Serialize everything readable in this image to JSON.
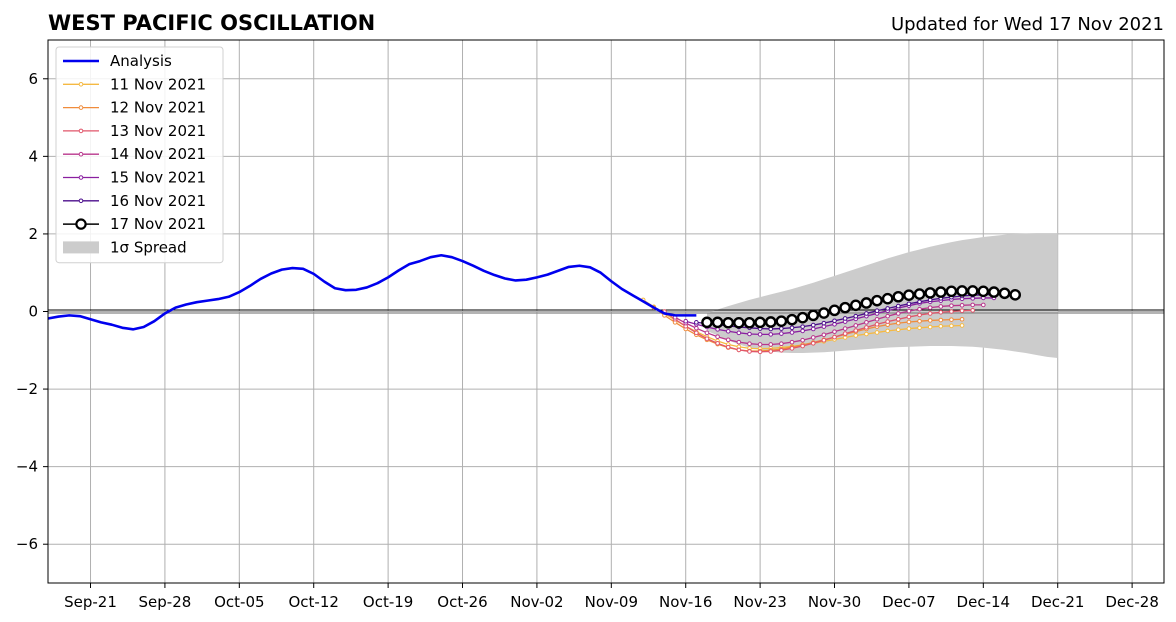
{
  "chart_data": {
    "type": "line",
    "title": "WEST PACIFIC OSCILLATION",
    "subtitle": "Updated for Wed 17 Nov 2021",
    "xlabel": "",
    "ylabel": "",
    "ylim": [
      -7,
      7
    ],
    "xlim": [
      "2021-09-17",
      "2021-12-31"
    ],
    "yticks": [
      -6,
      -4,
      -2,
      0,
      2,
      4,
      6
    ],
    "ytick_labels": [
      "−6",
      "−4",
      "−2",
      "0",
      "2",
      "4",
      "6"
    ],
    "xticks": [
      "2021-09-21",
      "2021-09-28",
      "2021-10-05",
      "2021-10-12",
      "2021-10-19",
      "2021-10-26",
      "2021-11-02",
      "2021-11-09",
      "2021-11-16",
      "2021-11-23",
      "2021-11-30",
      "2021-12-07",
      "2021-12-14",
      "2021-12-21",
      "2021-12-28"
    ],
    "xtick_labels": [
      "Sep-21",
      "Sep-28",
      "Oct-05",
      "Oct-12",
      "Oct-19",
      "Oct-26",
      "Nov-02",
      "Nov-09",
      "Nov-16",
      "Nov-23",
      "Nov-30",
      "Dec-07",
      "Dec-14",
      "Dec-21",
      "Dec-28"
    ],
    "grid": true,
    "legend_position": "top-left",
    "analysis": {
      "name": "Analysis",
      "color": "#0000ee",
      "points": [
        [
          "2021-09-17",
          -0.18
        ],
        [
          "2021-09-18",
          -0.13
        ],
        [
          "2021-09-19",
          -0.1
        ],
        [
          "2021-09-20",
          -0.12
        ],
        [
          "2021-09-21",
          -0.2
        ],
        [
          "2021-09-22",
          -0.28
        ],
        [
          "2021-09-23",
          -0.34
        ],
        [
          "2021-09-24",
          -0.42
        ],
        [
          "2021-09-25",
          -0.46
        ],
        [
          "2021-09-26",
          -0.4
        ],
        [
          "2021-09-27",
          -0.25
        ],
        [
          "2021-09-28",
          -0.05
        ],
        [
          "2021-09-29",
          0.1
        ],
        [
          "2021-09-30",
          0.18
        ],
        [
          "2021-10-01",
          0.24
        ],
        [
          "2021-10-02",
          0.28
        ],
        [
          "2021-10-03",
          0.32
        ],
        [
          "2021-10-04",
          0.38
        ],
        [
          "2021-10-05",
          0.5
        ],
        [
          "2021-10-06",
          0.66
        ],
        [
          "2021-10-07",
          0.84
        ],
        [
          "2021-10-08",
          0.98
        ],
        [
          "2021-10-09",
          1.08
        ],
        [
          "2021-10-10",
          1.12
        ],
        [
          "2021-10-11",
          1.1
        ],
        [
          "2021-10-12",
          0.97
        ],
        [
          "2021-10-13",
          0.77
        ],
        [
          "2021-10-14",
          0.6
        ],
        [
          "2021-10-15",
          0.55
        ],
        [
          "2021-10-16",
          0.56
        ],
        [
          "2021-10-17",
          0.62
        ],
        [
          "2021-10-18",
          0.73
        ],
        [
          "2021-10-19",
          0.88
        ],
        [
          "2021-10-20",
          1.06
        ],
        [
          "2021-10-21",
          1.22
        ],
        [
          "2021-10-22",
          1.3
        ],
        [
          "2021-10-23",
          1.4
        ],
        [
          "2021-10-24",
          1.45
        ],
        [
          "2021-10-25",
          1.4
        ],
        [
          "2021-10-26",
          1.3
        ],
        [
          "2021-10-27",
          1.18
        ],
        [
          "2021-10-28",
          1.05
        ],
        [
          "2021-10-29",
          0.94
        ],
        [
          "2021-10-30",
          0.85
        ],
        [
          "2021-10-31",
          0.8
        ],
        [
          "2021-11-01",
          0.82
        ],
        [
          "2021-11-02",
          0.88
        ],
        [
          "2021-11-03",
          0.95
        ],
        [
          "2021-11-04",
          1.05
        ],
        [
          "2021-11-05",
          1.15
        ],
        [
          "2021-11-06",
          1.18
        ],
        [
          "2021-11-07",
          1.14
        ],
        [
          "2021-11-08",
          1.0
        ],
        [
          "2021-11-09",
          0.78
        ],
        [
          "2021-11-10",
          0.58
        ],
        [
          "2021-11-11",
          0.42
        ],
        [
          "2021-11-12",
          0.26
        ],
        [
          "2021-11-13",
          0.1
        ],
        [
          "2021-11-14",
          -0.05
        ],
        [
          "2021-11-15",
          -0.1
        ],
        [
          "2021-11-16",
          -0.1
        ],
        [
          "2021-11-17",
          -0.1
        ]
      ]
    },
    "forecasts": [
      {
        "name": "11 Nov 2021",
        "color": "#f5b942",
        "x_start": "2021-11-12",
        "values": [
          0.3,
          0.12,
          -0.05,
          -0.22,
          -0.38,
          -0.52,
          -0.65,
          -0.76,
          -0.85,
          -0.91,
          -0.95,
          -0.96,
          -0.95,
          -0.93,
          -0.9,
          -0.86,
          -0.82,
          -0.77,
          -0.72,
          -0.67,
          -0.62,
          -0.58,
          -0.54,
          -0.5,
          -0.47,
          -0.44,
          -0.42,
          -0.4,
          -0.38,
          -0.37,
          -0.36
        ]
      },
      {
        "name": "12 Nov 2021",
        "color": "#f08c3c",
        "x_start": "2021-11-13",
        "values": [
          0.1,
          -0.1,
          -0.28,
          -0.45,
          -0.6,
          -0.73,
          -0.84,
          -0.93,
          -0.99,
          -1.02,
          -1.02,
          -1.0,
          -0.97,
          -0.92,
          -0.86,
          -0.8,
          -0.73,
          -0.66,
          -0.59,
          -0.52,
          -0.45,
          -0.39,
          -0.34,
          -0.3,
          -0.27,
          -0.25,
          -0.23,
          -0.22,
          -0.21,
          -0.2
        ]
      },
      {
        "name": "13 Nov 2021",
        "color": "#e0556a",
        "x_start": "2021-11-14",
        "values": [
          0.0,
          -0.2,
          -0.38,
          -0.55,
          -0.7,
          -0.82,
          -0.92,
          -0.99,
          -1.03,
          -1.04,
          -1.03,
          -1.0,
          -0.95,
          -0.89,
          -0.82,
          -0.74,
          -0.66,
          -0.57,
          -0.49,
          -0.41,
          -0.33,
          -0.26,
          -0.2,
          -0.14,
          -0.09,
          -0.05,
          -0.02,
          0.0,
          0.02,
          0.03
        ]
      },
      {
        "name": "14 Nov 2021",
        "color": "#b8368c",
        "x_start": "2021-11-15",
        "values": [
          -0.15,
          -0.3,
          -0.43,
          -0.55,
          -0.65,
          -0.73,
          -0.79,
          -0.83,
          -0.85,
          -0.85,
          -0.83,
          -0.79,
          -0.74,
          -0.67,
          -0.6,
          -0.52,
          -0.44,
          -0.36,
          -0.28,
          -0.2,
          -0.12,
          -0.05,
          0.01,
          0.06,
          0.1,
          0.13,
          0.15,
          0.16,
          0.17,
          0.17
        ]
      },
      {
        "name": "15 Nov 2021",
        "color": "#8a1fa0",
        "x_start": "2021-11-16",
        "values": [
          -0.25,
          -0.33,
          -0.4,
          -0.46,
          -0.51,
          -0.55,
          -0.58,
          -0.59,
          -0.59,
          -0.57,
          -0.54,
          -0.5,
          -0.45,
          -0.39,
          -0.33,
          -0.26,
          -0.19,
          -0.12,
          -0.05,
          0.02,
          0.09,
          0.15,
          0.21,
          0.25,
          0.28,
          0.31,
          0.33,
          0.34,
          0.35,
          0.35
        ]
      },
      {
        "name": "16 Nov 2021",
        "color": "#4b0e8c",
        "x_start": "2021-11-17",
        "values": [
          -0.28,
          -0.31,
          -0.34,
          -0.37,
          -0.4,
          -0.42,
          -0.44,
          -0.45,
          -0.44,
          -0.42,
          -0.39,
          -0.35,
          -0.3,
          -0.24,
          -0.18,
          -0.12,
          -0.05,
          0.02,
          0.08,
          0.14,
          0.2,
          0.25,
          0.3,
          0.34,
          0.37,
          0.4,
          0.42,
          0.43,
          0.44,
          0.44
        ]
      },
      {
        "name": "17 Nov 2021",
        "color": "#000000",
        "marker": "open-circle",
        "x_start": "2021-11-18",
        "values": [
          -0.28,
          -0.28,
          -0.29,
          -0.29,
          -0.29,
          -0.28,
          -0.27,
          -0.25,
          -0.21,
          -0.16,
          -0.1,
          -0.04,
          0.03,
          0.1,
          0.16,
          0.22,
          0.28,
          0.33,
          0.38,
          0.42,
          0.45,
          0.48,
          0.5,
          0.52,
          0.53,
          0.53,
          0.52,
          0.5,
          0.47,
          0.43
        ]
      }
    ],
    "spread": {
      "name": "1σ Spread",
      "color": "#cccccc",
      "x_start": "2021-11-18",
      "upper": [
        -0.05,
        0.05,
        0.14,
        0.22,
        0.3,
        0.37,
        0.44,
        0.51,
        0.58,
        0.66,
        0.74,
        0.83,
        0.92,
        1.01,
        1.1,
        1.19,
        1.28,
        1.37,
        1.45,
        1.53,
        1.6,
        1.67,
        1.73,
        1.79,
        1.84,
        1.88,
        1.92,
        1.95,
        1.98,
        2.0,
        2.01,
        2.02,
        2.02,
        2.02
      ],
      "lower": [
        -0.5,
        -0.62,
        -0.74,
        -0.85,
        -0.93,
        -0.99,
        -1.03,
        -1.06,
        -1.07,
        -1.07,
        -1.06,
        -1.05,
        -1.03,
        -1.01,
        -0.99,
        -0.97,
        -0.95,
        -0.93,
        -0.92,
        -0.91,
        -0.9,
        -0.89,
        -0.89,
        -0.89,
        -0.9,
        -0.91,
        -0.93,
        -0.96,
        -0.99,
        -1.03,
        -1.07,
        -1.12,
        -1.17,
        -1.2
      ]
    }
  }
}
